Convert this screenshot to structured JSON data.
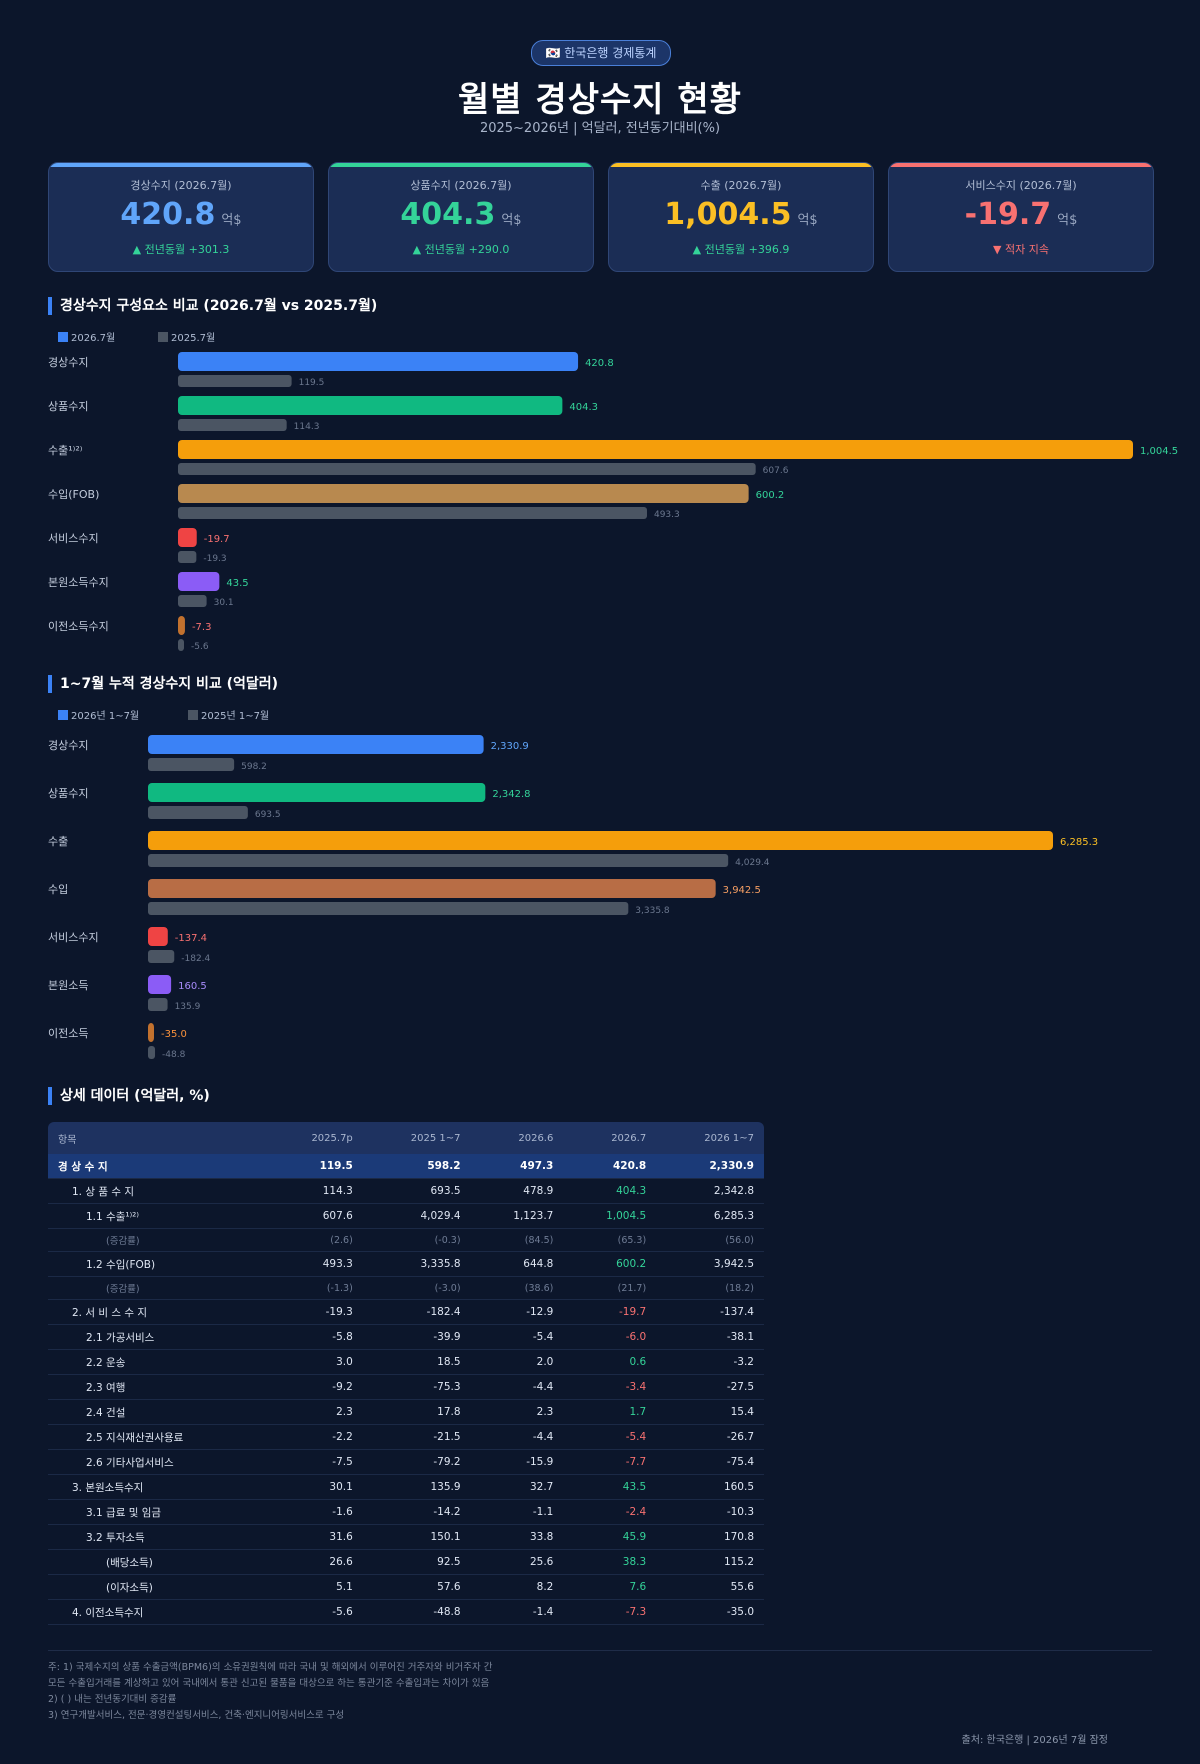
{
  "header": {
    "badge": "🇰🇷 한국은행 경제통계",
    "title": "월별 경상수지 현황",
    "subtitle": "2025~2026년  |  억달러, 전년동기대비(%)"
  },
  "cards": [
    {
      "label": "경상수지 (2026.7월)",
      "value": "420.8",
      "unit": "억$",
      "change": "▲ 전년동월 +301.3",
      "color": "#60a5fa",
      "bar_color": "#60a5fa",
      "change_color": "#34d399"
    },
    {
      "label": "상품수지 (2026.7월)",
      "value": "404.3",
      "unit": "억$",
      "change": "▲ 전년동월 +290.0",
      "color": "#34d399",
      "bar_color": "#34d399",
      "change_color": "#34d399"
    },
    {
      "label": "수출 (2026.7월)",
      "value": "1,004.5",
      "unit": "억$",
      "change": "▲ 전년동월 +396.9",
      "color": "#fbbf24",
      "bar_color": "#fbbf24",
      "change_color": "#34d399"
    },
    {
      "label": "서비스수지 (2026.7월)",
      "value": "-19.7",
      "unit": "억$",
      "change": "▼ 적자 지속",
      "color": "#f87171",
      "bar_color": "#f87171",
      "change_color": "#f87171"
    }
  ],
  "chart1_title": "경상수지 구성요소 비교 (2026.7월 vs 2025.7월)",
  "chart2_title": "1~7월 누적 경상수지 비교 (억달러)",
  "chart_data": [
    {
      "type": "bar",
      "orientation": "horizontal",
      "title": "경상수지 구성요소 비교 (2026.7월 vs 2025.7월)",
      "categories": [
        "경상수지",
        "상품수지",
        "수출¹⁾²⁾",
        "수입(FOB)",
        "서비스수지",
        "본원소득수지",
        "이전소득수지"
      ],
      "series": [
        {
          "name": "2026.7월",
          "values": [
            420.8,
            404.3,
            1004.5,
            600.2,
            -19.7,
            43.5,
            -7.3
          ],
          "labels": [
            "420.8",
            "404.3",
            "1,004.5",
            "600.2",
            "-19.7",
            "43.5",
            "-7.3"
          ],
          "colors": [
            "#3b82f6",
            "#10b981",
            "#f59e0b",
            "#b8894f",
            "#ef4444",
            "#8b5cf6",
            "#c2712e"
          ],
          "label_colors": [
            "#34d399",
            "#34d399",
            "#34d399",
            "#34d399",
            "#f87171",
            "#34d399",
            "#f87171"
          ]
        },
        {
          "name": "2025.7월",
          "values": [
            119.5,
            114.3,
            607.6,
            493.3,
            -19.3,
            30.1,
            -5.6
          ],
          "labels": [
            "119.5",
            "114.3",
            "607.6",
            "493.3",
            "-19.3",
            "30.1",
            "-5.6"
          ],
          "color": "#4b5563"
        }
      ],
      "legend_colors": [
        "#3b82f6",
        "#4b5563"
      ]
    },
    {
      "type": "bar",
      "orientation": "horizontal",
      "title": "1~7월 누적 경상수지 비교 (억달러)",
      "categories": [
        "경상수지",
        "상품수지",
        "수출",
        "수입",
        "서비스수지",
        "본원소득",
        "이전소득"
      ],
      "series": [
        {
          "name": "2026년 1~7월",
          "values": [
            2330.9,
            2342.8,
            6285.3,
            3942.5,
            -137.4,
            160.5,
            -35.0
          ],
          "labels": [
            "2,330.9",
            "2,342.8",
            "6,285.3",
            "3,942.5",
            "-137.4",
            "160.5",
            "-35.0"
          ],
          "colors": [
            "#3b82f6",
            "#10b981",
            "#f59e0b",
            "#b86d45",
            "#ef4444",
            "#8b5cf6",
            "#c2712e"
          ],
          "label_colors": [
            "#60a5fa",
            "#34d399",
            "#fbbf24",
            "#f59e63",
            "#f87171",
            "#a78bfa",
            "#fb923c"
          ]
        },
        {
          "name": "2025년 1~7월",
          "values": [
            598.2,
            693.5,
            4029.4,
            3335.8,
            -182.4,
            135.9,
            -48.8
          ],
          "labels": [
            "598.2",
            "693.5",
            "4,029.4",
            "3,335.8",
            "-182.4",
            "135.9",
            "-48.8"
          ],
          "color": "#4b5563"
        }
      ],
      "legend_colors": [
        "#3b82f6",
        "#4b5563"
      ]
    }
  ],
  "table_title": "상세 데이터 (억달러, %)",
  "table": {
    "columns": [
      "항목",
      "2025.7p",
      "2025 1~7",
      "2026.6",
      "2026.7",
      "2026 1~7"
    ],
    "rows": [
      {
        "cells": [
          "경 상 수 지",
          "119.5",
          "598.2",
          "497.3",
          "420.8",
          "2,330.9"
        ],
        "type": "hl",
        "indent": 0,
        "cur": "pos"
      },
      {
        "cells": [
          "1. 상 품 수 지",
          "114.3",
          "693.5",
          "478.9",
          "404.3",
          "2,342.8"
        ],
        "type": "row",
        "indent": 1,
        "cur": "pos"
      },
      {
        "cells": [
          "1.1 수출¹⁾²⁾",
          "607.6",
          "4,029.4",
          "1,123.7",
          "1,004.5",
          "6,285.3"
        ],
        "type": "row",
        "indent": 2,
        "cur": "pos"
      },
      {
        "cells": [
          "(증감률)",
          "(2.6)",
          "(-0.3)",
          "(84.5)",
          "(65.3)",
          "(56.0)"
        ],
        "type": "sub",
        "indent": 3,
        "cur": ""
      },
      {
        "cells": [
          "1.2 수입(FOB)",
          "493.3",
          "3,335.8",
          "644.8",
          "600.2",
          "3,942.5"
        ],
        "type": "row",
        "indent": 2,
        "cur": "pos"
      },
      {
        "cells": [
          "(증감률)",
          "(-1.3)",
          "(-3.0)",
          "(38.6)",
          "(21.7)",
          "(18.2)"
        ],
        "type": "sub",
        "indent": 3,
        "cur": ""
      },
      {
        "cells": [
          "2. 서 비 스 수 지",
          "-19.3",
          "-182.4",
          "-12.9",
          "-19.7",
          "-137.4"
        ],
        "type": "row",
        "indent": 1,
        "cur": "neg"
      },
      {
        "cells": [
          "2.1 가공서비스",
          "-5.8",
          "-39.9",
          "-5.4",
          "-6.0",
          "-38.1"
        ],
        "type": "row",
        "indent": 2,
        "cur": "neg"
      },
      {
        "cells": [
          "2.2 운송",
          "3.0",
          "18.5",
          "2.0",
          "0.6",
          "-3.2"
        ],
        "type": "row",
        "indent": 2,
        "cur": "pos"
      },
      {
        "cells": [
          "2.3 여행",
          "-9.2",
          "-75.3",
          "-4.4",
          "-3.4",
          "-27.5"
        ],
        "type": "row",
        "indent": 2,
        "cur": "neg"
      },
      {
        "cells": [
          "2.4 건설",
          "2.3",
          "17.8",
          "2.3",
          "1.7",
          "15.4"
        ],
        "type": "row",
        "indent": 2,
        "cur": "pos"
      },
      {
        "cells": [
          "2.5 지식재산권사용료",
          "-2.2",
          "-21.5",
          "-4.4",
          "-5.4",
          "-26.7"
        ],
        "type": "row",
        "indent": 2,
        "cur": "neg"
      },
      {
        "cells": [
          "2.6 기타사업서비스",
          "-7.5",
          "-79.2",
          "-15.9",
          "-7.7",
          "-75.4"
        ],
        "type": "row",
        "indent": 2,
        "cur": "neg"
      },
      {
        "cells": [
          "3. 본원소득수지",
          "30.1",
          "135.9",
          "32.7",
          "43.5",
          "160.5"
        ],
        "type": "row",
        "indent": 1,
        "cur": "pos"
      },
      {
        "cells": [
          "3.1 급료 및 임금",
          "-1.6",
          "-14.2",
          "-1.1",
          "-2.4",
          "-10.3"
        ],
        "type": "row",
        "indent": 2,
        "cur": "neg"
      },
      {
        "cells": [
          "3.2 투자소득",
          "31.6",
          "150.1",
          "33.8",
          "45.9",
          "170.8"
        ],
        "type": "row",
        "indent": 2,
        "cur": "pos"
      },
      {
        "cells": [
          "(배당소득)",
          "26.6",
          "92.5",
          "25.6",
          "38.3",
          "115.2"
        ],
        "type": "row",
        "indent": 3,
        "cur": "pos"
      },
      {
        "cells": [
          "(이자소득)",
          "5.1",
          "57.6",
          "8.2",
          "7.6",
          "55.6"
        ],
        "type": "row",
        "indent": 3,
        "cur": "pos"
      },
      {
        "cells": [
          "4. 이전소득수지",
          "-5.6",
          "-48.8",
          "-1.4",
          "-7.3",
          "-35.0"
        ],
        "type": "row",
        "indent": 1,
        "cur": "neg"
      }
    ]
  },
  "notes": [
    "주: 1) 국제수지의 상품 수출금액(BPM6)의 소유권원칙에 따라 국내 및 해외에서 이루어진 거주자와 비거주자 간",
    "      모든 수출입거래를 계상하고 있어 국내에서 통관 신고된 물품을 대상으로 하는 통관기준 수출입과는 차이가 있음",
    "   2) ( ) 내는 전년동기대비 증감률",
    "   3) 연구개발서비스, 전문·경영컨설팅서비스, 건축·엔지니어링서비스로 구성"
  ],
  "source": "출처: 한국은행  |  2026년 7월 잠정"
}
